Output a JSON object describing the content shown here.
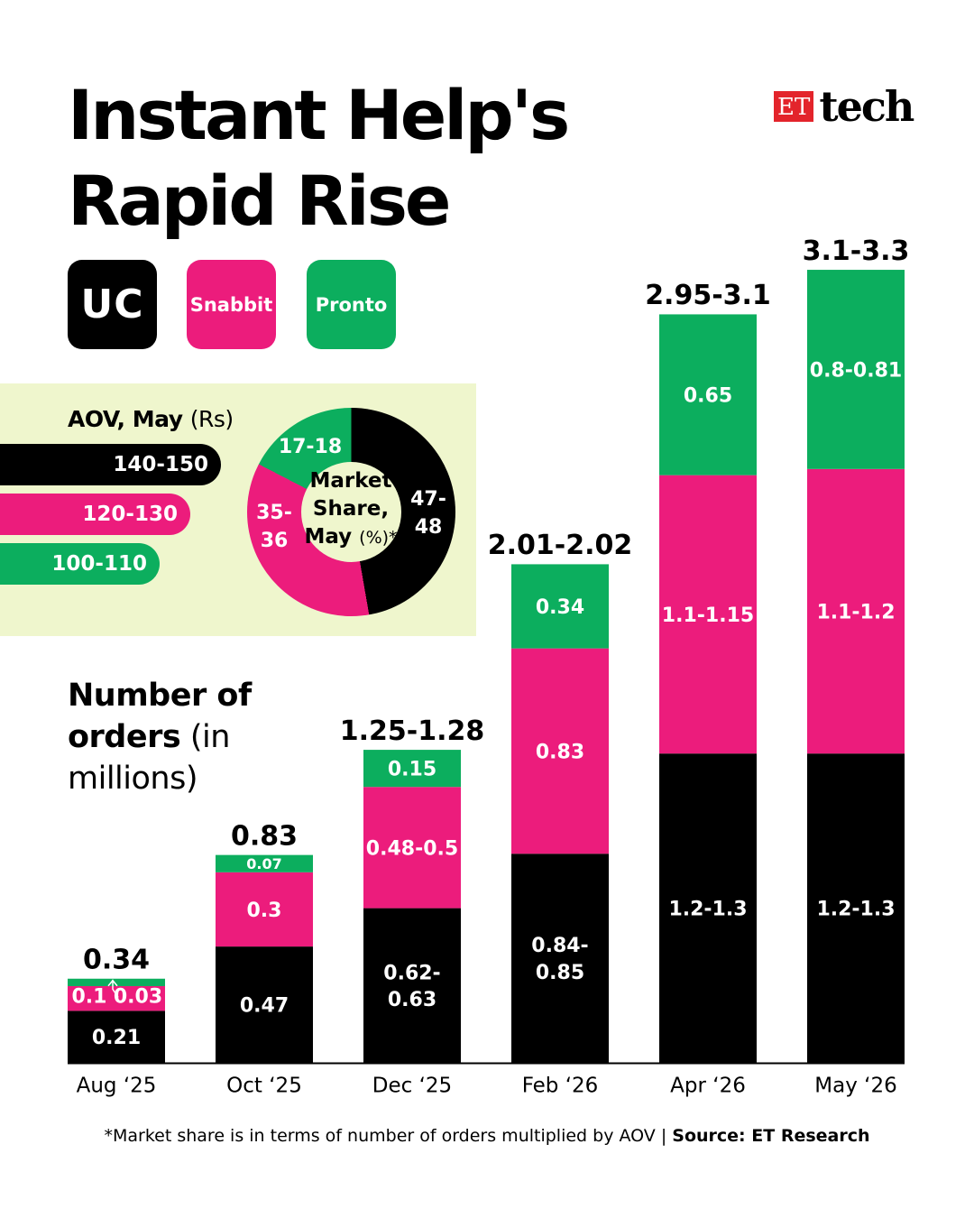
{
  "title_line1": "Instant Help's",
  "title_line2": "Rapid Rise",
  "logo": {
    "et": "ET",
    "tech": "tech"
  },
  "brands": [
    {
      "label": "UC",
      "color": "#000000"
    },
    {
      "label": "Snabbit",
      "color": "#ec1c7c"
    },
    {
      "label": "Pronto",
      "color": "#0cae5e"
    }
  ],
  "aov": {
    "title": "AOV, May",
    "unit": "(Rs)",
    "values": [
      "140-150",
      "120-130",
      "100-110"
    ]
  },
  "market_share": {
    "center_line1": "Market",
    "center_line2": "Share,",
    "center_line3": "May",
    "center_unit": "(%)*",
    "segments": [
      {
        "brand": "UC",
        "label_1": "47-",
        "label_2": "48",
        "value": 47.5,
        "color": "#000000"
      },
      {
        "brand": "Snabbit",
        "label_1": "35-",
        "label_2": "36",
        "value": 35.5,
        "color": "#ec1c7c"
      },
      {
        "brand": "Pronto",
        "label_1": "17-18",
        "label_2": "",
        "value": 17.5,
        "color": "#0cae5e"
      }
    ]
  },
  "orders_title": {
    "bold_1": "Number of",
    "bold_2": "orders",
    "rest_1": "(in",
    "rest_2": "millions)"
  },
  "chart_data": {
    "type": "bar",
    "stacked": true,
    "categories": [
      "Aug ‘25",
      "Oct ‘25",
      "Dec ‘25",
      "Feb ‘26",
      "Apr ‘26",
      "May ‘26"
    ],
    "totals": [
      "0.34",
      "0.83",
      "1.25-1.28",
      "2.01-2.02",
      "2.95-3.1",
      "3.1-3.3"
    ],
    "series": [
      {
        "name": "UC",
        "color": "#000000",
        "values": [
          0.21,
          0.47,
          0.625,
          0.845,
          1.25,
          1.25
        ],
        "labels": [
          "0.21",
          "0.47",
          "0.62-\n0.63",
          "0.84-\n0.85",
          "1.2-1.3",
          "1.2-1.3"
        ]
      },
      {
        "name": "Snabbit",
        "color": "#ec1c7c",
        "values": [
          0.1,
          0.3,
          0.49,
          0.83,
          1.125,
          1.15
        ],
        "labels": [
          "0.1",
          "0.3",
          "0.48-0.5",
          "0.83",
          "1.1-1.15",
          "1.1-1.2"
        ]
      },
      {
        "name": "Pronto",
        "color": "#0cae5e",
        "values": [
          0.03,
          0.07,
          0.15,
          0.34,
          0.65,
          0.805
        ],
        "labels": [
          "0.03",
          "0.07",
          "0.15",
          "0.34",
          "0.65",
          "0.8-0.81"
        ]
      }
    ],
    "xlabel": "",
    "ylabel": "",
    "ylim": [
      0,
      3.3
    ],
    "grid": false
  },
  "footnote": {
    "text": "*Market share is in terms of number of orders multiplied by AOV | ",
    "source": "Source: ET Research"
  }
}
